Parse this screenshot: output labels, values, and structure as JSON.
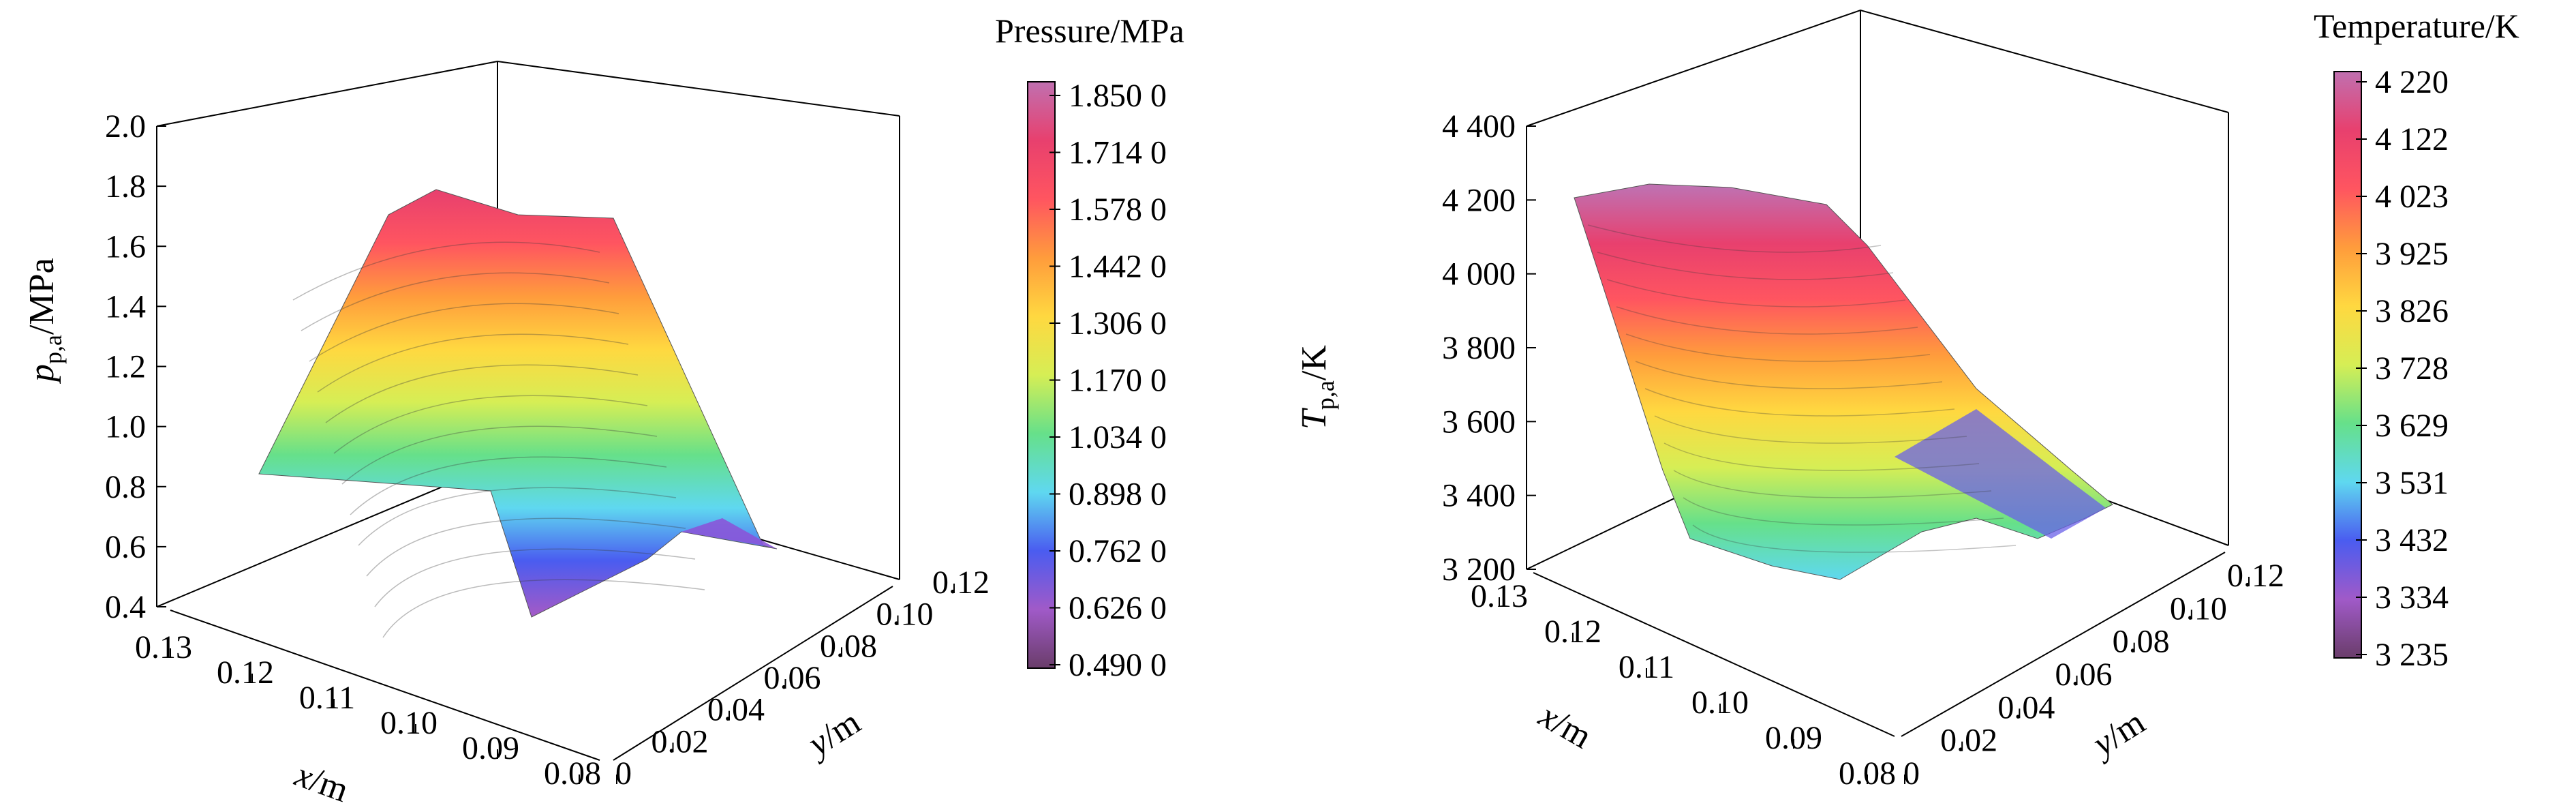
{
  "chart_data": [
    {
      "type": "surface3d",
      "zlabel": "p_p,a/MPa",
      "zlabel_main": "p",
      "zlabel_sub": "p,a",
      "zlabel_unit": "/MPa",
      "xlabel_var": "x",
      "xlabel_unit": "/m",
      "ylabel_var": "y",
      "ylabel_unit": "/m",
      "z_ticks": [
        "2.0",
        "1.8",
        "1.6",
        "1.4",
        "1.2",
        "1.0",
        "0.8",
        "0.6",
        "0.4"
      ],
      "z_range": [
        0.4,
        2.0
      ],
      "x_ticks": [
        "0.13",
        "0.12",
        "0.11",
        "0.10",
        "0.09",
        "0.08"
      ],
      "x_range": [
        0.08,
        0.13
      ],
      "y_ticks": [
        "0",
        "0.02",
        "0.04",
        "0.06",
        "0.08",
        "0.10",
        "0.12"
      ],
      "y_range": [
        0,
        0.12
      ],
      "colorbar": {
        "title": "Pressure/MPa",
        "ticks": [
          "1.850 0",
          "1.714 0",
          "1.578 0",
          "1.442 0",
          "1.306 0",
          "1.170 0",
          "1.034 0",
          "0.898 0",
          "0.762 0",
          "0.626 0",
          "0.490 0"
        ],
        "range": [
          0.49,
          1.85
        ]
      },
      "colormap": [
        "#6a3d6a",
        "#a05ac8",
        "#4a5cf0",
        "#5fd8f0",
        "#66e08a",
        "#d6ee55",
        "#ffd840",
        "#ff9c3c",
        "#ff5560",
        "#e8406e",
        "#c070b0"
      ]
    },
    {
      "type": "surface3d",
      "zlabel": "T_p,a/K",
      "zlabel_main": "T",
      "zlabel_sub": "p,a",
      "zlabel_unit": "/K",
      "xlabel_var": "x",
      "xlabel_unit": "/m",
      "ylabel_var": "y",
      "ylabel_unit": "/m",
      "z_ticks": [
        "4 400",
        "4 200",
        "4 000",
        "3 800",
        "3 600",
        "3 400",
        "3 200"
      ],
      "z_range": [
        3200,
        4400
      ],
      "x_ticks": [
        "0.13",
        "0.12",
        "0.11",
        "0.10",
        "0.09",
        "0.08"
      ],
      "x_range": [
        0.08,
        0.13
      ],
      "y_ticks": [
        "0",
        "0.02",
        "0.04",
        "0.06",
        "0.08",
        "0.10",
        "0.12"
      ],
      "y_range": [
        0,
        0.12
      ],
      "colorbar": {
        "title": "Temperature/K",
        "ticks": [
          "4 220",
          "4 122",
          "4 023",
          "3 925",
          "3 826",
          "3 728",
          "3 629",
          "3 531",
          "3 432",
          "3 334",
          "3 235"
        ],
        "range": [
          3235,
          4220
        ]
      },
      "colormap": [
        "#6a3d6a",
        "#a05ac8",
        "#4a5cf0",
        "#5fd8f0",
        "#66e08a",
        "#d6ee55",
        "#ffd840",
        "#ff9c3c",
        "#ff5560",
        "#e8406e",
        "#c070b0"
      ]
    }
  ]
}
